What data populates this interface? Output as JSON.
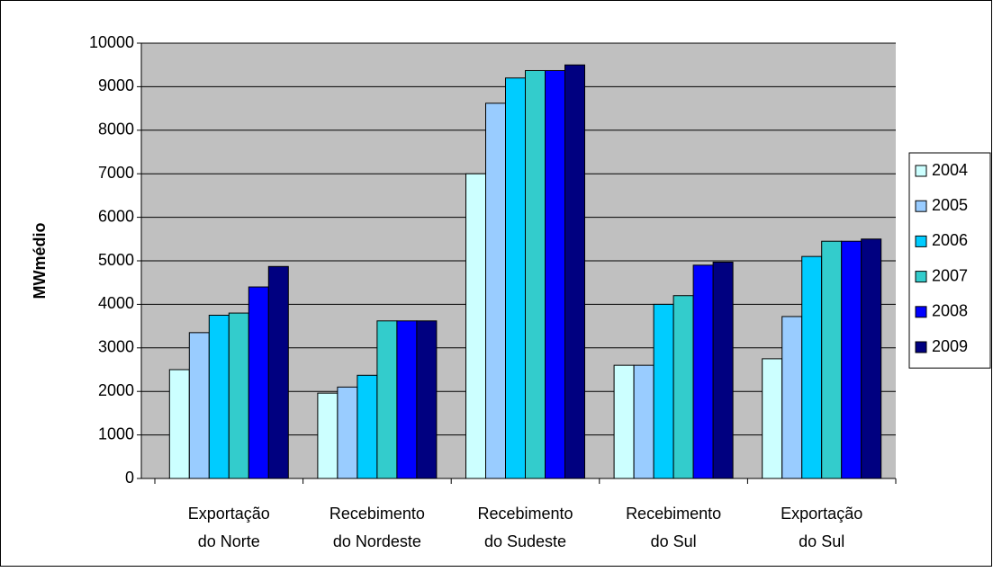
{
  "chart_data": {
    "type": "bar",
    "y_label": "MWmédio",
    "categories": [
      [
        "Exportação",
        "do Norte"
      ],
      [
        "Recebimento",
        "do Nordeste"
      ],
      [
        "Recebimento",
        "do Sudeste"
      ],
      [
        "Recebimento",
        "do Sul"
      ],
      [
        "Exportação",
        "do Sul"
      ]
    ],
    "series": [
      {
        "name": "2004",
        "color": "#ccffff",
        "values": [
          2500,
          1960,
          7000,
          2600,
          2750
        ]
      },
      {
        "name": "2005",
        "color": "#99ccff",
        "values": [
          3350,
          2100,
          8620,
          2600,
          3720
        ]
      },
      {
        "name": "2006",
        "color": "#00ccff",
        "values": [
          3750,
          2370,
          9200,
          4000,
          5100
        ]
      },
      {
        "name": "2007",
        "color": "#33cccc",
        "values": [
          3800,
          3620,
          9370,
          4200,
          5450
        ]
      },
      {
        "name": "2008",
        "color": "#0000ff",
        "values": [
          4400,
          3620,
          9370,
          4900,
          5450
        ]
      },
      {
        "name": "2009",
        "color": "#000080",
        "values": [
          4870,
          3620,
          9500,
          4970,
          5500
        ]
      }
    ],
    "ylim": [
      0,
      10000
    ],
    "yticks": [
      0,
      1000,
      2000,
      3000,
      4000,
      5000,
      6000,
      7000,
      8000,
      9000,
      10000
    ],
    "grid": true,
    "legend": "right"
  }
}
